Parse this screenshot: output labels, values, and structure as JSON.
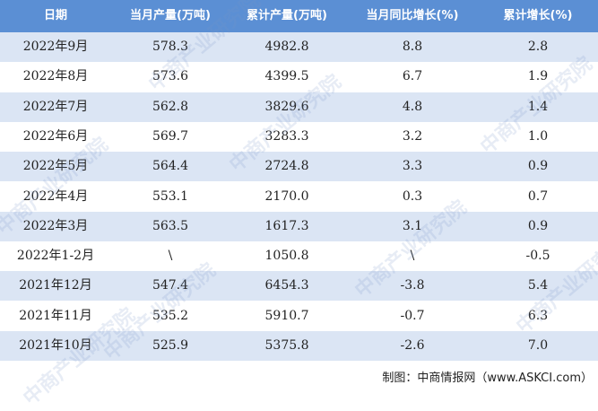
{
  "table": {
    "header": [
      "日期",
      "当月产量(万吨)",
      "累计产量(万吨)",
      "当月同比增长(%)",
      "累计增长(%)"
    ],
    "rows": [
      [
        "2022年9月",
        "578.3",
        "4982.8",
        "8.8",
        "2.8"
      ],
      [
        "2022年8月",
        "573.6",
        "4399.5",
        "6.7",
        "1.9"
      ],
      [
        "2022年7月",
        "562.8",
        "3829.6",
        "4.8",
        "1.4"
      ],
      [
        "2022年6月",
        "569.7",
        "3283.3",
        "3.2",
        "1.0"
      ],
      [
        "2022年5月",
        "564.4",
        "2724.8",
        "3.3",
        "0.9"
      ],
      [
        "2022年4月",
        "553.1",
        "2170.0",
        "0.3",
        "0.7"
      ],
      [
        "2022年3月",
        "563.5",
        "1617.3",
        "3.1",
        "0.9"
      ],
      [
        "2022年1-2月",
        "\\",
        "1050.8",
        "\\",
        "-0.5"
      ],
      [
        "2021年12月",
        "547.4",
        "6454.3",
        "-3.8",
        "5.4"
      ],
      [
        "2021年11月",
        "535.2",
        "5910.7",
        "-0.7",
        "6.3"
      ],
      [
        "2021年10月",
        "525.9",
        "5375.8",
        "-2.6",
        "7.0"
      ]
    ]
  },
  "watermark": "中商产业研究院",
  "footer": "制图：中商情报网（www.ASKCI.com）"
}
